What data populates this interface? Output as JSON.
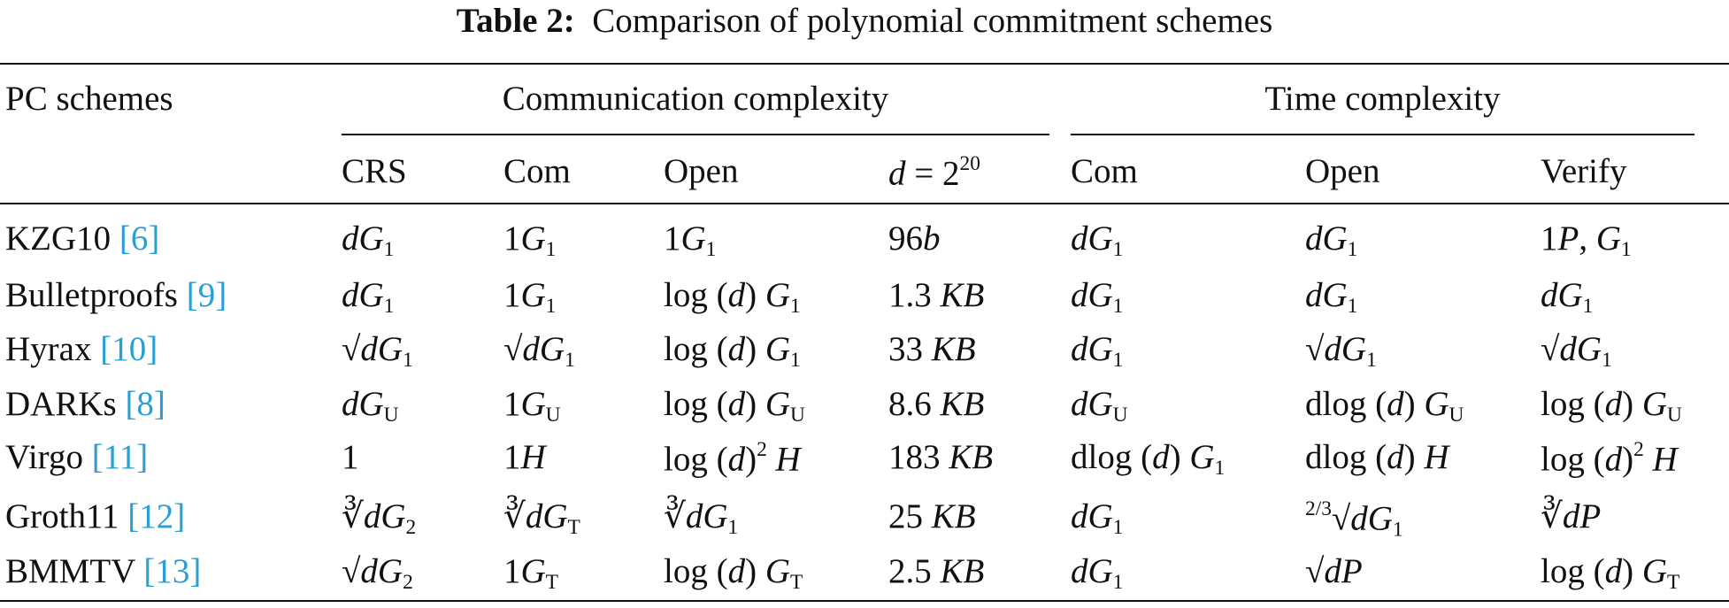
{
  "title": {
    "label": "Table 2:",
    "text": "Comparison of polynomial commitment schemes"
  },
  "table": {
    "header": {
      "first": "PC schemes",
      "groups": [
        "Communication complexity",
        "Time complexity"
      ],
      "columns": [
        "CRS",
        "Com",
        "Open",
        [
          {
            "i": "d"
          },
          " = 2",
          {
            "sup": "20"
          }
        ],
        "Com",
        "Open",
        "Verify"
      ]
    },
    "rows": [
      {
        "name": "KZG10",
        "ref": "[6]",
        "cells": [
          [
            {
              "i": "dG"
            },
            {
              "sub": "1"
            }
          ],
          [
            "1",
            {
              "i": "G"
            },
            {
              "sub": "1"
            }
          ],
          [
            "1",
            {
              "i": "G"
            },
            {
              "sub": "1"
            }
          ],
          [
            "96",
            {
              "i": "b"
            }
          ],
          [
            {
              "i": "dG"
            },
            {
              "sub": "1"
            }
          ],
          [
            {
              "i": "dG"
            },
            {
              "sub": "1"
            }
          ],
          [
            "1",
            {
              "i": "P"
            },
            ", ",
            {
              "i": "G"
            },
            {
              "sub": "1"
            }
          ]
        ]
      },
      {
        "name": "Bulletproofs",
        "ref": "[9]",
        "cells": [
          [
            {
              "i": "dG"
            },
            {
              "sub": "1"
            }
          ],
          [
            "1",
            {
              "i": "G"
            },
            {
              "sub": "1"
            }
          ],
          [
            "log (",
            {
              "i": "d"
            },
            ") ",
            {
              "i": "G"
            },
            {
              "sub": "1"
            }
          ],
          [
            "1.3 ",
            {
              "i": "KB"
            }
          ],
          [
            {
              "i": "dG"
            },
            {
              "sub": "1"
            }
          ],
          [
            {
              "i": "dG"
            },
            {
              "sub": "1"
            }
          ],
          [
            {
              "i": "dG"
            },
            {
              "sub": "1"
            }
          ]
        ]
      },
      {
        "name": "Hyrax",
        "ref": "[10]",
        "cells": [
          [
            "√",
            {
              "i": "dG"
            },
            {
              "sub": "1"
            }
          ],
          [
            "√",
            {
              "i": "dG"
            },
            {
              "sub": "1"
            }
          ],
          [
            "log (",
            {
              "i": "d"
            },
            ") ",
            {
              "i": "G"
            },
            {
              "sub": "1"
            }
          ],
          [
            "33 ",
            {
              "i": "KB"
            }
          ],
          [
            {
              "i": "dG"
            },
            {
              "sub": "1"
            }
          ],
          [
            "√",
            {
              "i": "dG"
            },
            {
              "sub": "1"
            }
          ],
          [
            "√",
            {
              "i": "dG"
            },
            {
              "sub": "1"
            }
          ]
        ]
      },
      {
        "name": "DARKs",
        "ref": "[8]",
        "cells": [
          [
            {
              "i": "dG"
            },
            {
              "sub": "U"
            }
          ],
          [
            "1",
            {
              "i": "G"
            },
            {
              "sub": "U"
            }
          ],
          [
            "log (",
            {
              "i": "d"
            },
            ") ",
            {
              "i": "G"
            },
            {
              "sub": "U"
            }
          ],
          [
            "8.6 ",
            {
              "i": "KB"
            }
          ],
          [
            {
              "i": "dG"
            },
            {
              "sub": "U"
            }
          ],
          [
            "dlog (",
            {
              "i": "d"
            },
            ") ",
            {
              "i": "G"
            },
            {
              "sub": "U"
            }
          ],
          [
            "log (",
            {
              "i": "d"
            },
            ") ",
            {
              "i": "G"
            },
            {
              "sub": "U"
            }
          ]
        ]
      },
      {
        "name": "Virgo",
        "ref": "[11]",
        "cells": [
          "1",
          [
            "1",
            {
              "i": "H"
            }
          ],
          [
            "log (",
            {
              "i": "d"
            },
            ")",
            {
              "sup": "2"
            },
            " ",
            {
              "i": "H"
            }
          ],
          [
            "183 ",
            {
              "i": "KB"
            }
          ],
          [
            "dlog (",
            {
              "i": "d"
            },
            ") ",
            {
              "i": "G"
            },
            {
              "sub": "1"
            }
          ],
          [
            "dlog (",
            {
              "i": "d"
            },
            ") ",
            {
              "i": "H"
            }
          ],
          [
            "log (",
            {
              "i": "d"
            },
            ")",
            {
              "sup": "2"
            },
            " ",
            {
              "i": "H"
            }
          ]
        ]
      },
      {
        "name": "Groth11",
        "ref": "[12]",
        "cells": [
          [
            "∛",
            {
              "i": "dG"
            },
            {
              "sub": "2"
            }
          ],
          [
            "∛",
            {
              "i": "dG"
            },
            {
              "sub": "T"
            }
          ],
          [
            "∛",
            {
              "i": "dG"
            },
            {
              "sub": "1"
            }
          ],
          [
            "25 ",
            {
              "i": "KB"
            }
          ],
          [
            {
              "i": "dG"
            },
            {
              "sub": "1"
            }
          ],
          [
            {
              "sup": "2/3"
            },
            "√",
            {
              "i": "dG"
            },
            {
              "sub": "1"
            }
          ],
          [
            "∛",
            {
              "i": "dP"
            }
          ]
        ]
      },
      {
        "name": "BMMTV",
        "ref": "[13]",
        "cells": [
          [
            "√",
            {
              "i": "dG"
            },
            {
              "sub": "2"
            }
          ],
          [
            "1",
            {
              "i": "G"
            },
            {
              "sub": "T"
            }
          ],
          [
            "log (",
            {
              "i": "d"
            },
            ") ",
            {
              "i": "G"
            },
            {
              "sub": "T"
            }
          ],
          [
            "2.5 ",
            {
              "i": "KB"
            }
          ],
          [
            {
              "i": "dG"
            },
            {
              "sub": "1"
            }
          ],
          [
            "√",
            {
              "i": "dP"
            }
          ],
          [
            "log (",
            {
              "i": "d"
            },
            ") ",
            {
              "i": "G"
            },
            {
              "sub": "T"
            }
          ]
        ]
      }
    ]
  }
}
